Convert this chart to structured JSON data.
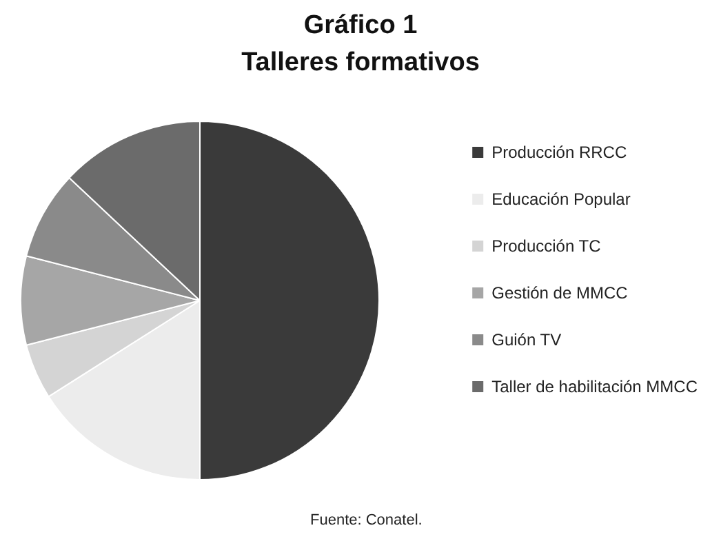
{
  "chart_data": {
    "type": "pie",
    "title": "Gráfico 1",
    "subtitle": "Talleres formativos",
    "categories": [
      "Producción RRCC",
      "Educación Popular",
      "Producción TC",
      "Gestión de MMCC",
      "Guión TV",
      "Taller de habilitación MMCC"
    ],
    "values": [
      50,
      16,
      5,
      8,
      8,
      13
    ],
    "colors": [
      "#3a3a3a",
      "#ececec",
      "#d4d4d4",
      "#a6a6a6",
      "#8a8a8a",
      "#6b6b6b"
    ],
    "legend": "right",
    "annotations": [
      "Fuente: Conatel."
    ]
  }
}
